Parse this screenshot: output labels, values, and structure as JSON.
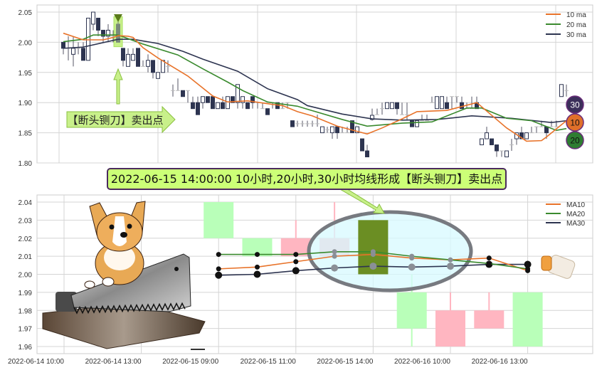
{
  "chart_data": [
    {
      "type": "candlestick",
      "ylim": [
        1.8,
        2.05
      ],
      "yticks": [
        "2.05",
        "2.00",
        "1.95",
        "1.90",
        "1.85",
        "1.80"
      ],
      "grid": true,
      "legend_placement": "top-right",
      "legend": [
        "10 ma",
        "20 ma",
        "30 ma"
      ],
      "colors": {
        "up_body": "#ffffff",
        "down_body": "#2d3450",
        "ma10": "#e8732a",
        "ma20": "#3a8a2e",
        "ma30": "#2d3450"
      },
      "ohlc": [
        [
          2.0,
          2.0,
          1.98,
          1.99
        ],
        [
          1.99,
          2.01,
          1.97,
          1.99
        ],
        [
          1.98,
          2.01,
          1.96,
          1.99
        ],
        [
          1.99,
          2.0,
          1.98,
          1.99
        ],
        [
          1.99,
          2.0,
          1.97,
          1.97
        ],
        [
          1.97,
          2.04,
          1.97,
          2.04
        ],
        [
          2.03,
          2.05,
          2.02,
          2.05
        ],
        [
          2.04,
          2.04,
          2.01,
          2.02
        ],
        [
          2.02,
          2.02,
          2.0,
          2.01
        ],
        [
          2.01,
          2.03,
          2.0,
          2.02
        ],
        [
          2.01,
          2.02,
          2.0,
          2.01
        ],
        [
          2.03,
          2.04,
          2.0,
          2.0
        ],
        [
          1.99,
          1.99,
          1.96,
          1.97
        ],
        [
          1.96,
          1.99,
          1.96,
          1.98
        ],
        [
          1.97,
          1.99,
          1.97,
          1.98
        ],
        [
          1.99,
          1.99,
          1.96,
          1.96
        ],
        [
          1.96,
          1.97,
          1.96,
          1.96
        ],
        [
          1.96,
          1.98,
          1.95,
          1.97
        ],
        [
          1.97,
          1.97,
          1.94,
          1.95
        ],
        [
          1.94,
          1.95,
          1.94,
          1.95
        ],
        [
          1.95,
          1.97,
          1.95,
          1.97
        ],
        [
          1.96,
          1.97,
          1.95,
          1.96
        ],
        [
          1.92,
          1.93,
          1.91,
          1.92
        ],
        [
          1.92,
          1.94,
          1.92,
          1.92
        ],
        [
          1.92,
          1.92,
          1.91,
          1.91
        ],
        [
          1.92,
          1.92,
          1.9,
          1.92
        ],
        [
          1.9,
          1.91,
          1.89,
          1.89
        ],
        [
          1.9,
          1.91,
          1.88,
          1.88
        ],
        [
          1.9,
          1.91,
          1.89,
          1.91
        ],
        [
          1.91,
          1.91,
          1.9,
          1.9
        ],
        [
          1.91,
          1.91,
          1.89,
          1.89
        ],
        [
          1.89,
          1.9,
          1.89,
          1.9
        ],
        [
          1.9,
          1.91,
          1.89,
          1.89
        ],
        [
          1.89,
          1.91,
          1.89,
          1.91
        ],
        [
          1.91,
          1.91,
          1.9,
          1.9
        ],
        [
          1.9,
          1.93,
          1.89,
          1.93
        ],
        [
          1.9,
          1.91,
          1.89,
          1.91
        ],
        [
          1.9,
          1.9,
          1.89,
          1.89
        ],
        [
          1.91,
          1.91,
          1.89,
          1.9
        ],
        [
          1.9,
          1.9,
          1.89,
          1.9
        ],
        [
          1.89,
          1.9,
          1.89,
          1.89
        ],
        [
          1.89,
          1.89,
          1.88,
          1.88
        ],
        [
          1.9,
          1.9,
          1.89,
          1.9
        ],
        [
          1.9,
          1.9,
          1.89,
          1.89
        ],
        [
          1.89,
          1.9,
          1.89,
          1.89
        ],
        [
          1.9,
          1.9,
          1.89,
          1.9
        ],
        [
          1.87,
          1.87,
          1.86,
          1.86
        ],
        [
          1.865,
          1.87,
          1.86,
          1.865
        ],
        [
          1.865,
          1.87,
          1.86,
          1.865
        ],
        [
          1.865,
          1.87,
          1.86,
          1.865
        ],
        [
          1.865,
          1.87,
          1.86,
          1.865
        ],
        [
          1.865,
          1.88,
          1.86,
          1.865
        ],
        [
          1.85,
          1.86,
          1.85,
          1.86
        ],
        [
          1.855,
          1.86,
          1.85,
          1.855
        ],
        [
          1.85,
          1.86,
          1.84,
          1.86
        ],
        [
          1.86,
          1.86,
          1.84,
          1.85
        ],
        [
          1.85,
          1.86,
          1.85,
          1.85
        ],
        [
          1.85,
          1.86,
          1.85,
          1.85
        ],
        [
          1.87,
          1.87,
          1.85,
          1.85
        ],
        [
          1.85,
          1.86,
          1.85,
          1.86
        ],
        [
          1.84,
          1.84,
          1.82,
          1.82
        ],
        [
          1.82,
          1.83,
          1.81,
          1.81
        ],
        [
          1.872,
          1.89,
          1.87,
          1.879
        ],
        [
          1.88,
          1.89,
          1.88,
          1.88
        ],
        [
          1.89,
          1.9,
          1.88,
          1.89
        ],
        [
          1.89,
          1.9,
          1.89,
          1.9
        ],
        [
          1.89,
          1.9,
          1.89,
          1.9
        ],
        [
          1.9,
          1.9,
          1.88,
          1.89
        ],
        [
          1.88,
          1.9,
          1.88,
          1.88
        ],
        [
          1.88,
          1.9,
          1.87,
          1.88
        ],
        [
          1.87,
          1.87,
          1.86,
          1.86
        ],
        [
          1.86,
          1.87,
          1.86,
          1.87
        ],
        [
          1.87,
          1.88,
          1.87,
          1.87
        ],
        [
          1.87,
          1.88,
          1.87,
          1.87
        ],
        [
          1.9,
          1.91,
          1.9,
          1.9
        ],
        [
          1.89,
          1.91,
          1.89,
          1.91
        ],
        [
          1.89,
          1.91,
          1.89,
          1.91
        ],
        [
          1.9,
          1.91,
          1.89,
          1.89
        ],
        [
          1.91,
          1.91,
          1.89,
          1.91
        ],
        [
          1.91,
          1.91,
          1.9,
          1.91
        ],
        [
          1.9,
          1.91,
          1.89,
          1.89
        ],
        [
          1.89,
          1.9,
          1.89,
          1.89
        ],
        [
          1.89,
          1.91,
          1.89,
          1.89
        ],
        [
          1.9,
          1.91,
          1.89,
          1.89
        ],
        [
          1.83,
          1.84,
          1.83,
          1.84
        ],
        [
          1.84,
          1.86,
          1.84,
          1.85
        ],
        [
          1.84,
          1.84,
          1.83,
          1.83
        ],
        [
          1.83,
          1.83,
          1.81,
          1.82
        ],
        [
          1.82,
          1.82,
          1.81,
          1.82
        ],
        [
          1.81,
          1.82,
          1.81,
          1.82
        ],
        [
          1.83,
          1.84,
          1.82,
          1.83
        ],
        [
          1.84,
          1.85,
          1.83,
          1.85
        ],
        [
          1.85,
          1.86,
          1.84,
          1.84
        ],
        [
          1.84,
          1.85,
          1.84,
          1.85
        ],
        [
          1.85,
          1.86,
          1.85,
          1.85
        ],
        [
          1.86,
          1.86,
          1.85,
          1.86
        ],
        [
          1.86,
          1.87,
          1.86,
          1.86
        ],
        [
          1.86,
          1.86,
          1.84,
          1.85
        ],
        [
          1.86,
          1.87,
          1.86,
          1.86
        ],
        [
          1.86,
          1.87,
          1.86,
          1.86
        ],
        [
          1.91,
          1.93,
          1.91,
          1.93
        ],
        [
          1.92,
          1.93,
          1.91,
          1.92
        ]
      ],
      "ma10": [
        [
          0,
          2.015
        ],
        [
          4,
          2.004
        ],
        [
          8,
          2.004
        ],
        [
          10,
          2.008
        ],
        [
          11,
          2.011
        ],
        [
          13,
          2.01
        ],
        [
          14,
          2.008
        ],
        [
          16,
          1.991
        ],
        [
          19,
          1.974
        ],
        [
          25,
          1.944
        ],
        [
          30,
          1.911
        ],
        [
          33,
          1.901
        ],
        [
          37,
          1.903
        ],
        [
          42,
          1.897
        ],
        [
          44,
          1.895
        ],
        [
          47,
          1.885
        ],
        [
          50,
          1.878
        ],
        [
          55,
          1.861
        ],
        [
          61,
          1.848
        ],
        [
          64,
          1.858
        ],
        [
          68,
          1.873
        ],
        [
          71,
          1.885
        ],
        [
          77,
          1.887
        ],
        [
          83,
          1.9
        ],
        [
          89,
          1.858
        ],
        [
          93,
          1.836
        ],
        [
          96,
          1.837
        ],
        [
          97,
          1.843
        ],
        [
          101,
          1.87
        ]
      ],
      "ma20": [
        [
          0,
          2.001
        ],
        [
          4,
          2.005
        ],
        [
          6,
          2.012
        ],
        [
          11,
          2.012
        ],
        [
          16,
          1.997
        ],
        [
          23,
          1.979
        ],
        [
          28,
          1.956
        ],
        [
          33,
          1.934
        ],
        [
          36,
          1.92
        ],
        [
          41,
          1.901
        ],
        [
          47,
          1.894
        ],
        [
          49,
          1.889
        ],
        [
          56,
          1.872
        ],
        [
          61,
          1.861
        ],
        [
          68,
          1.866
        ],
        [
          74,
          1.868
        ],
        [
          81,
          1.891
        ],
        [
          84,
          1.891
        ],
        [
          89,
          1.874
        ],
        [
          94,
          1.87
        ],
        [
          99,
          1.854
        ],
        [
          101,
          1.857
        ]
      ],
      "ma30": [
        [
          0,
          1.99
        ],
        [
          4,
          1.992
        ],
        [
          11,
          2.005
        ],
        [
          14,
          2.005
        ],
        [
          19,
          1.998
        ],
        [
          24,
          1.985
        ],
        [
          28,
          1.972
        ],
        [
          35,
          1.952
        ],
        [
          41,
          1.923
        ],
        [
          47,
          1.905
        ],
        [
          49,
          1.895
        ],
        [
          56,
          1.881
        ],
        [
          62,
          1.873
        ],
        [
          68,
          1.871
        ],
        [
          75,
          1.872
        ],
        [
          82,
          1.878
        ],
        [
          90,
          1.874
        ],
        [
          98,
          1.867
        ],
        [
          101,
          1.87
        ]
      ],
      "signal_index": 11,
      "annotation": "【断头铡刀】卖出点",
      "badges": [
        "30",
        "10",
        "20"
      ]
    },
    {
      "type": "candlestick",
      "ylim": [
        1.96,
        2.04
      ],
      "yticks": [
        "2.04",
        "2.03",
        "2.02",
        "2.01",
        "2.00",
        "1.99",
        "1.98",
        "1.97",
        "1.96"
      ],
      "xticks": [
        "2022-06-14 10:00",
        "2022-06-14 13:00",
        "2022-06-15 09:00",
        "2022-06-15 11:00",
        "2022-06-15 14:00",
        "2022-06-16 10:00",
        "2022-06-16 13:00"
      ],
      "grid": true,
      "legend_placement": "top-right",
      "legend": [
        "MA10",
        "MA20",
        "MA30"
      ],
      "colors": {
        "up": "#ffb6c1",
        "down": "#b9ffb9",
        "signal": "#6b8e23",
        "ma10": "#e8732a",
        "ma20": "#3a8a2e",
        "ma30": "#2d3450"
      },
      "ohlc": [
        null,
        null,
        null,
        null,
        [
          2.04,
          2.04,
          2.02,
          2.02
        ],
        [
          2.02,
          2.02,
          2.01,
          2.01
        ],
        [
          2.01,
          2.03,
          2.01,
          2.02
        ],
        [
          2.01,
          2.04,
          2.01,
          2.02
        ],
        [
          2.03,
          2.03,
          2.0,
          2.0
        ],
        [
          1.99,
          2.0,
          1.96,
          1.97
        ],
        [
          1.96,
          1.99,
          1.96,
          1.98
        ],
        [
          1.97,
          1.99,
          1.97,
          1.98
        ],
        [
          1.99,
          1.99,
          1.96,
          1.96
        ]
      ],
      "ma10": [
        null,
        null,
        null,
        null,
        2.003,
        2.004,
        2.007,
        2.01,
        2.011,
        2.009,
        2.008,
        2.009,
        2.002
      ],
      "ma20": [
        null,
        null,
        null,
        null,
        2.011,
        2.011,
        2.011,
        2.0125,
        2.0125,
        2.01,
        2.008,
        2.006,
        2.003
      ],
      "ma30": [
        null,
        null,
        null,
        null,
        1.9995,
        2.0,
        2.002,
        2.0035,
        2.0045,
        2.004,
        2.0045,
        2.0055,
        2.0055
      ],
      "signal_index": 8
    }
  ],
  "banner": "2022-06-15 14:00:00 10小时,20小时,30小时均线形成【断头铡刀】卖出点"
}
